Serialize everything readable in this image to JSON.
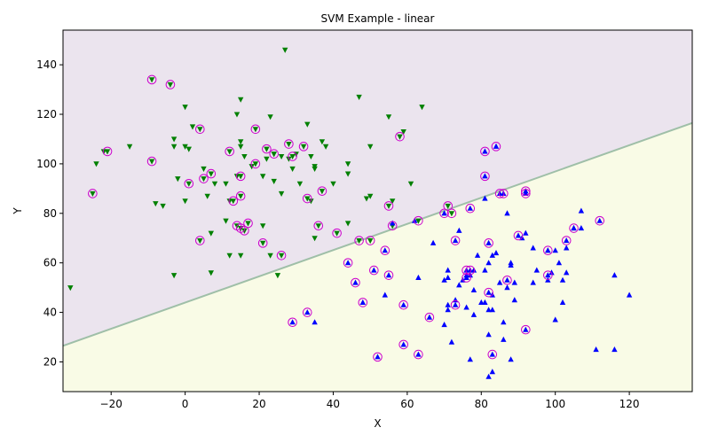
{
  "chart_data": {
    "type": "scatter",
    "title": "SVM Example - linear",
    "xlabel": "X",
    "ylabel": "Y",
    "xlim": [
      -33,
      137
    ],
    "ylim": [
      8,
      154
    ],
    "x_ticks": [
      -20,
      0,
      20,
      40,
      60,
      80,
      100,
      120
    ],
    "y_ticks": [
      20,
      40,
      60,
      80,
      100,
      120,
      140
    ],
    "decision_boundary": {
      "x": [
        -33,
        137
      ],
      "y": [
        26.5,
        116.5
      ]
    },
    "regions": {
      "upper_color": "#ebe4ee",
      "lower_color": "#f9fbe6",
      "boundary_color": "#9fbfa8"
    },
    "series": [
      {
        "marker": "triangle-down",
        "color": "#008000",
        "points": [
          [
            -31,
            50
          ],
          [
            -24,
            100
          ],
          [
            -22,
            105
          ],
          [
            -15,
            107
          ],
          [
            -8,
            84
          ],
          [
            -6,
            83
          ],
          [
            -3,
            107
          ],
          [
            -3,
            110
          ],
          [
            -3,
            55
          ],
          [
            -2,
            94
          ],
          [
            0,
            85
          ],
          [
            0,
            107
          ],
          [
            0,
            123
          ],
          [
            1,
            106
          ],
          [
            2,
            115
          ],
          [
            5,
            98
          ],
          [
            6,
            87
          ],
          [
            7,
            72
          ],
          [
            7,
            56
          ],
          [
            8,
            92
          ],
          [
            11,
            77
          ],
          [
            11,
            92
          ],
          [
            12,
            63
          ],
          [
            12,
            85
          ],
          [
            14,
            95
          ],
          [
            14,
            120
          ],
          [
            15,
            126
          ],
          [
            15,
            107
          ],
          [
            15,
            109
          ],
          [
            15,
            63
          ],
          [
            16,
            103
          ],
          [
            18,
            99
          ],
          [
            21,
            75
          ],
          [
            21,
            95
          ],
          [
            22,
            102
          ],
          [
            23,
            63
          ],
          [
            23,
            119
          ],
          [
            24,
            93
          ],
          [
            24,
            104
          ],
          [
            25,
            55
          ],
          [
            26,
            103
          ],
          [
            26,
            88
          ],
          [
            27,
            146
          ],
          [
            28,
            102
          ],
          [
            29,
            98
          ],
          [
            30,
            104
          ],
          [
            31,
            92
          ],
          [
            33,
            116
          ],
          [
            34,
            103
          ],
          [
            34,
            85
          ],
          [
            35,
            99
          ],
          [
            35,
            98
          ],
          [
            35,
            70
          ],
          [
            37,
            109
          ],
          [
            38,
            107
          ],
          [
            40,
            92
          ],
          [
            44,
            96
          ],
          [
            44,
            100
          ],
          [
            44,
            76
          ],
          [
            47,
            127
          ],
          [
            49,
            86
          ],
          [
            50,
            87
          ],
          [
            50,
            107
          ],
          [
            55,
            119
          ],
          [
            56,
            85
          ],
          [
            59,
            113
          ],
          [
            61,
            92
          ],
          [
            64,
            123
          ],
          [
            -25,
            88
          ],
          [
            -21,
            105
          ],
          [
            -9,
            134
          ],
          [
            -9,
            101
          ],
          [
            -4,
            132
          ],
          [
            1,
            92
          ],
          [
            4,
            69
          ],
          [
            4,
            114
          ],
          [
            5,
            94
          ],
          [
            7,
            96
          ],
          [
            12,
            105
          ],
          [
            13,
            85
          ],
          [
            14,
            75
          ],
          [
            15,
            87
          ],
          [
            15,
            95
          ],
          [
            15,
            74
          ],
          [
            16,
            73
          ],
          [
            17,
            76
          ],
          [
            19,
            114
          ],
          [
            19,
            100
          ],
          [
            21,
            68
          ],
          [
            22,
            106
          ],
          [
            24,
            104
          ],
          [
            26,
            63
          ],
          [
            28,
            108
          ],
          [
            29,
            103
          ],
          [
            32,
            107
          ],
          [
            33,
            86
          ],
          [
            36,
            75
          ],
          [
            37,
            89
          ],
          [
            41,
            72
          ],
          [
            47,
            69
          ],
          [
            50,
            69
          ],
          [
            55,
            83
          ],
          [
            56,
            75
          ],
          [
            58,
            111
          ],
          [
            63,
            77
          ],
          [
            71,
            83
          ],
          [
            72,
            80
          ]
        ]
      },
      {
        "marker": "triangle-up",
        "color": "#0000ff",
        "points": [
          [
            35,
            36
          ],
          [
            54,
            47
          ],
          [
            56,
            76
          ],
          [
            62,
            77
          ],
          [
            63,
            54
          ],
          [
            67,
            68
          ],
          [
            70,
            53
          ],
          [
            70,
            35
          ],
          [
            71,
            54
          ],
          [
            71,
            43
          ],
          [
            71,
            41
          ],
          [
            71,
            57
          ],
          [
            72,
            28
          ],
          [
            73,
            45
          ],
          [
            74,
            51
          ],
          [
            74,
            73
          ],
          [
            75,
            53
          ],
          [
            76,
            55
          ],
          [
            76,
            42
          ],
          [
            77,
            55
          ],
          [
            77,
            21
          ],
          [
            78,
            57
          ],
          [
            78,
            49
          ],
          [
            78,
            39
          ],
          [
            79,
            63
          ],
          [
            80,
            44
          ],
          [
            81,
            86
          ],
          [
            81,
            44
          ],
          [
            81,
            57
          ],
          [
            82,
            31
          ],
          [
            82,
            41
          ],
          [
            82,
            60
          ],
          [
            82,
            14
          ],
          [
            83,
            63
          ],
          [
            83,
            16
          ],
          [
            83,
            41
          ],
          [
            83,
            47
          ],
          [
            84,
            64
          ],
          [
            85,
            52
          ],
          [
            86,
            29
          ],
          [
            86,
            36
          ],
          [
            87,
            80
          ],
          [
            87,
            50
          ],
          [
            88,
            59
          ],
          [
            88,
            60
          ],
          [
            88,
            21
          ],
          [
            89,
            52
          ],
          [
            89,
            45
          ],
          [
            91,
            70
          ],
          [
            92,
            72
          ],
          [
            94,
            66
          ],
          [
            94,
            52
          ],
          [
            95,
            57
          ],
          [
            98,
            53
          ],
          [
            98,
            65
          ],
          [
            99,
            56
          ],
          [
            100,
            65
          ],
          [
            100,
            37
          ],
          [
            101,
            60
          ],
          [
            102,
            53
          ],
          [
            102,
            44
          ],
          [
            103,
            56
          ],
          [
            103,
            66
          ],
          [
            105,
            74
          ],
          [
            107,
            81
          ],
          [
            107,
            74
          ],
          [
            111,
            25
          ],
          [
            116,
            25
          ],
          [
            116,
            55
          ],
          [
            120,
            47
          ],
          [
            29,
            36
          ],
          [
            33,
            40
          ],
          [
            44,
            60
          ],
          [
            46,
            52
          ],
          [
            48,
            44
          ],
          [
            51,
            57
          ],
          [
            52,
            22
          ],
          [
            54,
            65
          ],
          [
            55,
            55
          ],
          [
            59,
            43
          ],
          [
            59,
            27
          ],
          [
            63,
            23
          ],
          [
            66,
            38
          ],
          [
            70,
            80
          ],
          [
            73,
            69
          ],
          [
            73,
            43
          ],
          [
            77,
            82
          ],
          [
            76,
            57
          ],
          [
            76,
            54
          ],
          [
            77,
            57
          ],
          [
            81,
            105
          ],
          [
            81,
            95
          ],
          [
            82,
            48
          ],
          [
            82,
            68
          ],
          [
            83,
            23
          ],
          [
            84,
            107
          ],
          [
            85,
            88
          ],
          [
            86,
            88
          ],
          [
            87,
            53
          ],
          [
            90,
            71
          ],
          [
            92,
            88
          ],
          [
            92,
            89
          ],
          [
            92,
            33
          ],
          [
            98,
            55
          ],
          [
            98,
            65
          ],
          [
            103,
            69
          ],
          [
            105,
            74
          ],
          [
            112,
            77
          ]
        ]
      }
    ],
    "support_vectors": [
      [
        -25,
        88
      ],
      [
        -21,
        105
      ],
      [
        -9,
        134
      ],
      [
        -9,
        101
      ],
      [
        -4,
        132
      ],
      [
        1,
        92
      ],
      [
        4,
        69
      ],
      [
        4,
        114
      ],
      [
        5,
        94
      ],
      [
        7,
        96
      ],
      [
        12,
        105
      ],
      [
        13,
        85
      ],
      [
        14,
        75
      ],
      [
        15,
        87
      ],
      [
        15,
        95
      ],
      [
        15,
        74
      ],
      [
        16,
        73
      ],
      [
        17,
        76
      ],
      [
        19,
        114
      ],
      [
        19,
        100
      ],
      [
        21,
        68
      ],
      [
        22,
        106
      ],
      [
        24,
        104
      ],
      [
        26,
        63
      ],
      [
        28,
        108
      ],
      [
        29,
        103
      ],
      [
        32,
        107
      ],
      [
        33,
        86
      ],
      [
        36,
        75
      ],
      [
        37,
        89
      ],
      [
        41,
        72
      ],
      [
        47,
        69
      ],
      [
        50,
        69
      ],
      [
        55,
        83
      ],
      [
        56,
        75
      ],
      [
        58,
        111
      ],
      [
        63,
        77
      ],
      [
        71,
        83
      ],
      [
        72,
        80
      ],
      [
        29,
        36
      ],
      [
        33,
        40
      ],
      [
        44,
        60
      ],
      [
        46,
        52
      ],
      [
        48,
        44
      ],
      [
        51,
        57
      ],
      [
        52,
        22
      ],
      [
        54,
        65
      ],
      [
        55,
        55
      ],
      [
        59,
        43
      ],
      [
        59,
        27
      ],
      [
        63,
        23
      ],
      [
        66,
        38
      ],
      [
        70,
        80
      ],
      [
        73,
        69
      ],
      [
        73,
        43
      ],
      [
        77,
        82
      ],
      [
        76,
        57
      ],
      [
        76,
        54
      ],
      [
        77,
        57
      ],
      [
        81,
        105
      ],
      [
        81,
        95
      ],
      [
        82,
        48
      ],
      [
        82,
        68
      ],
      [
        83,
        23
      ],
      [
        84,
        107
      ],
      [
        85,
        88
      ],
      [
        86,
        88
      ],
      [
        87,
        53
      ],
      [
        90,
        71
      ],
      [
        92,
        88
      ],
      [
        92,
        89
      ],
      [
        92,
        33
      ],
      [
        98,
        55
      ],
      [
        98,
        65
      ],
      [
        103,
        69
      ],
      [
        105,
        74
      ],
      [
        112,
        77
      ]
    ],
    "support_vector_color": "#cc00cc",
    "grid": false,
    "legend": "none"
  }
}
